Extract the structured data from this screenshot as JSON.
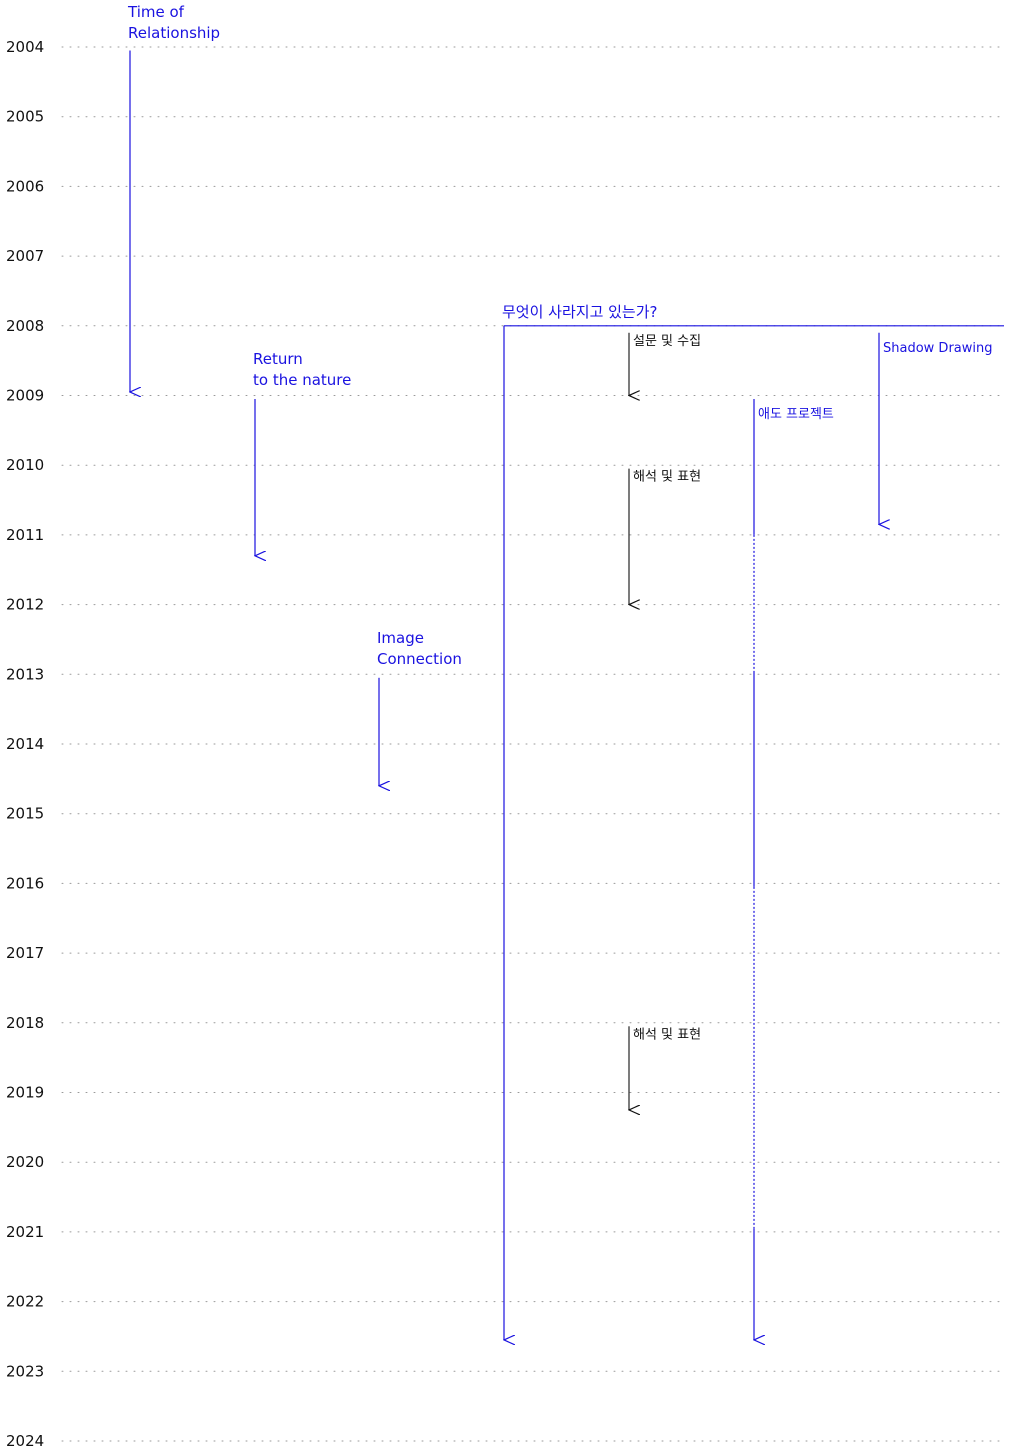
{
  "colors": {
    "blue": "#1a12e0",
    "black": "#111111",
    "grid": "#9a9a9a"
  },
  "years": [
    "2004",
    "2005",
    "2006",
    "2007",
    "2008",
    "2009",
    "2010",
    "2011",
    "2012",
    "2013",
    "2014",
    "2015",
    "2016",
    "2017",
    "2018",
    "2019",
    "2020",
    "2021",
    "2022",
    "2023",
    "2024"
  ],
  "projects": [
    {
      "name": "time-of-relationship",
      "lines": [
        "Time of",
        "Relationship"
      ],
      "start": 2004.05,
      "end": 2008.95
    },
    {
      "name": "return-to-the-nature",
      "lines": [
        "Return",
        "to the nature"
      ],
      "start": 2009.05,
      "end": 2011.3
    },
    {
      "name": "image-connection",
      "lines": [
        "Image",
        "Connection"
      ],
      "start": 2013.05,
      "end": 2014.6
    },
    {
      "name": "what-is-disappearing",
      "lines": [
        "무엇이 사라지고 있는가?"
      ],
      "start": 2008.0,
      "end": 2022.55
    },
    {
      "name": "shadow-drawing",
      "lines": [
        "Shadow Drawing"
      ],
      "start": 2008.1,
      "end": 2010.85
    },
    {
      "name": "aedo-project",
      "lines": [
        "애도 프로젝트"
      ],
      "start": 2009.05,
      "end": 2022.55
    }
  ],
  "sub_steps": [
    {
      "label": "설문 및 수집",
      "start": 2008.1,
      "end": 2009.0
    },
    {
      "label": "해석 및 표현",
      "start": 2010.05,
      "end": 2012.0
    },
    {
      "label": "해석 및 표현",
      "start": 2018.05,
      "end": 2019.25
    }
  ]
}
